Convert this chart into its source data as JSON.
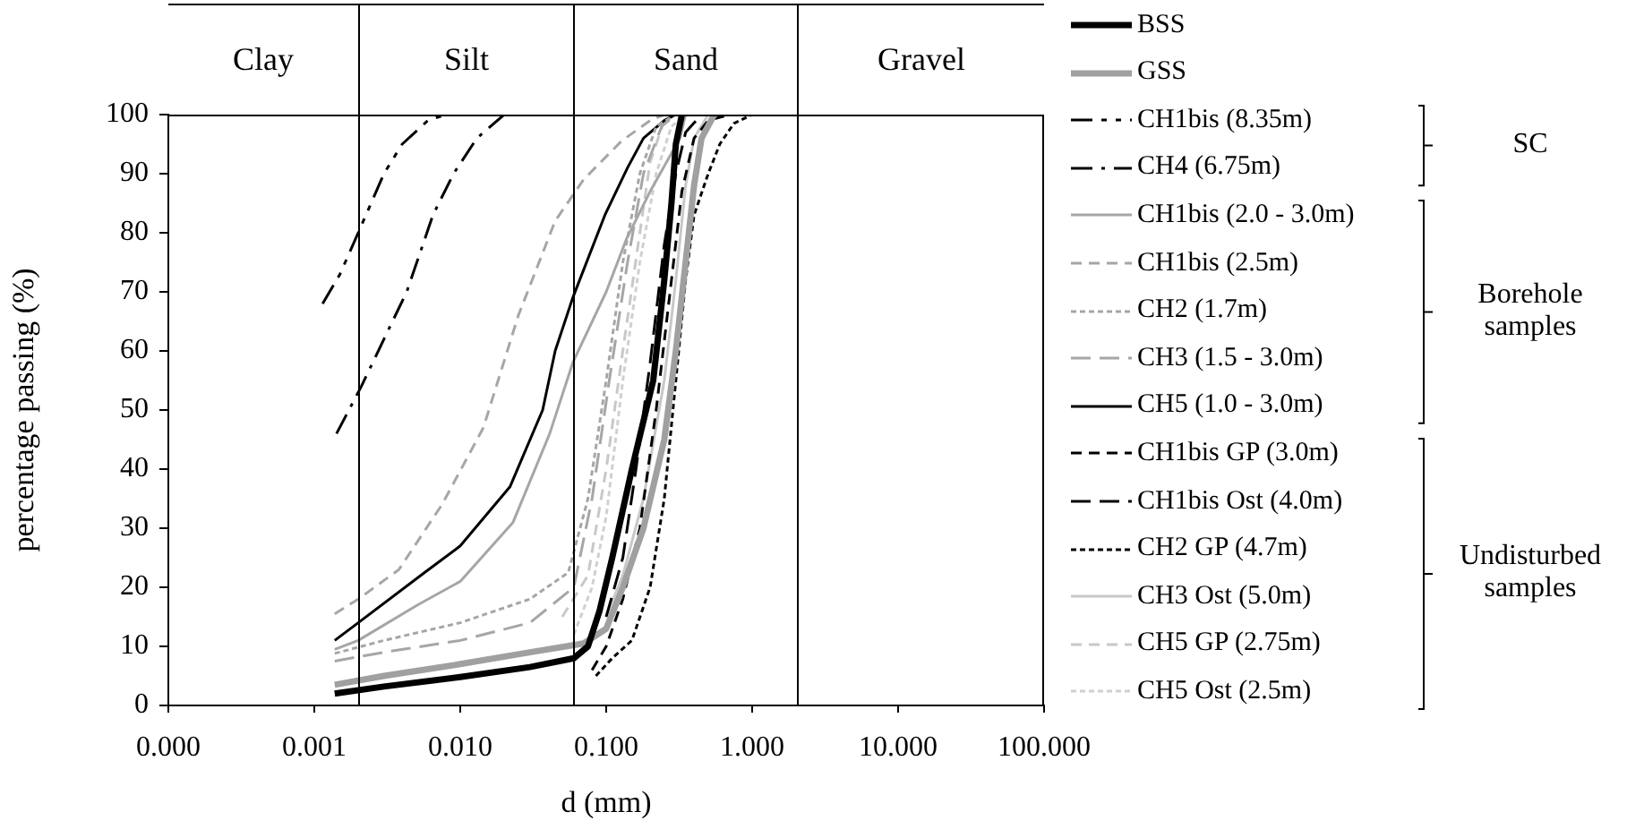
{
  "chart_data": {
    "type": "line",
    "xlabel": "d (mm)",
    "ylabel": "percentage passing (%)",
    "log": "x",
    "legend": "right",
    "xlim": [
      0.0001,
      100
    ],
    "xticks": [
      {
        "value": 0.0001,
        "label": "0.000"
      },
      0.001,
      {
        "value": 0.01,
        "label": "0.010"
      },
      {
        "value": 0.1,
        "label": "0.100"
      },
      {
        "value": 1,
        "label": "1.000"
      },
      {
        "value": 10,
        "label": "10.000"
      },
      {
        "value": 100,
        "label": "100.000"
      }
    ],
    "ylim": [
      0,
      100
    ],
    "yticks": [
      0,
      10,
      20,
      30,
      40,
      50,
      60,
      70,
      80,
      90,
      100
    ],
    "ref_lines": [
      {
        "axis": "x",
        "value": 0.002
      },
      {
        "axis": "x",
        "value": 0.06
      },
      {
        "axis": "x",
        "value": 2
      }
    ],
    "annotations": [
      "Clay",
      "Silt",
      "Sand",
      "Gravel",
      "SC",
      "Borehole samples",
      "Undisturbed samples"
    ],
    "series": [
      {
        "name": "BSS",
        "color": "#000000",
        "line_style": "solid",
        "x": [
          0.00138,
          0.003,
          0.01,
          0.03,
          0.06,
          0.075,
          0.09,
          0.11,
          0.15,
          0.21,
          0.25,
          0.28,
          0.3,
          0.33
        ],
        "values": [
          2,
          3.2,
          4.8,
          6.5,
          8,
          10,
          16,
          25,
          40,
          55,
          72,
          85,
          95,
          100
        ]
      },
      {
        "name": "GSS",
        "color": "#a0a0a0",
        "line_style": "solid",
        "x": [
          0.00138,
          0.003,
          0.01,
          0.03,
          0.07,
          0.1,
          0.13,
          0.18,
          0.25,
          0.3,
          0.35,
          0.4,
          0.45,
          0.55
        ],
        "values": [
          3.5,
          5,
          7,
          9,
          10.5,
          13,
          20,
          30,
          45,
          60,
          75,
          88,
          96,
          100
        ]
      },
      {
        "name": "CH1bis (8.35m)",
        "color": "#000000",
        "line_style": "dashdotdot",
        "x": [
          0.00114,
          0.0015,
          0.002,
          0.003,
          0.004,
          0.006,
          0.008
        ],
        "values": [
          68,
          73,
          80,
          90,
          95,
          99,
          100
        ]
      },
      {
        "name": "CH4 (6.75m)",
        "color": "#000000",
        "line_style": "dashdot",
        "x": [
          0.00142,
          0.0021,
          0.003,
          0.0043,
          0.0065,
          0.009,
          0.013,
          0.02
        ],
        "values": [
          46,
          54,
          62,
          70,
          83,
          90,
          96,
          100
        ]
      },
      {
        "name": "CH1bis (2.0 - 3.0m)",
        "color": "#a6a6a6",
        "line_style": "solid",
        "x": [
          0.00138,
          0.002,
          0.0051,
          0.01,
          0.023,
          0.041,
          0.059,
          0.1,
          0.138,
          0.2,
          0.32,
          0.35
        ],
        "values": [
          9.5,
          11,
          17,
          21,
          31,
          46,
          58,
          70,
          79,
          87,
          96,
          100
        ]
      },
      {
        "name": "CH1bis (2.5m)",
        "color": "#a6a6a6",
        "line_style": "dashed",
        "x": [
          0.00138,
          0.002,
          0.0038,
          0.0075,
          0.0144,
          0.025,
          0.0447,
          0.07,
          0.127,
          0.2,
          0.25
        ],
        "values": [
          15.5,
          18,
          23,
          34,
          47,
          66,
          82,
          89,
          95.5,
          99,
          100
        ]
      },
      {
        "name": "CH2 (1.7m)",
        "color": "#a6a6a6",
        "line_style": "dotted",
        "x": [
          0.00138,
          0.003,
          0.01,
          0.03,
          0.055,
          0.075,
          0.1,
          0.13,
          0.17,
          0.22,
          0.3
        ],
        "values": [
          8.8,
          11,
          14,
          18,
          22.5,
          35,
          55,
          75,
          90,
          98,
          100
        ]
      },
      {
        "name": "CH3 (1.5 - 3.0m)",
        "color": "#a6a6a6",
        "line_style": "longdash",
        "x": [
          0.00138,
          0.003,
          0.01,
          0.03,
          0.06,
          0.08,
          0.105,
          0.14,
          0.18,
          0.24,
          0.3
        ],
        "values": [
          7.5,
          9,
          11,
          14,
          20,
          35,
          55,
          75,
          90,
          98,
          100
        ]
      },
      {
        "name": "CH5 (1.0 - 3.0m)",
        "color": "#000000",
        "line_style": "solid",
        "x": [
          0.00138,
          0.002,
          0.0057,
          0.01,
          0.0219,
          0.0367,
          0.0447,
          0.059,
          0.098,
          0.14,
          0.18,
          0.25,
          0.3
        ],
        "values": [
          11,
          14,
          22.5,
          27,
          37,
          50,
          60,
          69,
          83,
          91,
          96,
          99,
          100
        ]
      },
      {
        "name": "CH1bis GP (3.0m)",
        "color": "#000000",
        "line_style": "dashed",
        "x": [
          0.08,
          0.1,
          0.13,
          0.17,
          0.22,
          0.28,
          0.33,
          0.4,
          0.5,
          0.7
        ],
        "values": [
          6,
          10,
          18,
          30,
          50,
          72,
          87,
          96,
          99,
          100
        ]
      },
      {
        "name": "CH1bis Ost (4.0m)",
        "color": "#000000",
        "line_style": "longdash",
        "x": [
          0.1,
          0.13,
          0.16,
          0.2,
          0.25,
          0.3,
          0.35,
          0.45
        ],
        "values": [
          15,
          25,
          40,
          58,
          78,
          90,
          97,
          100
        ]
      },
      {
        "name": "CH2 GP (4.7m)",
        "color": "#000000",
        "line_style": "dotted",
        "x": [
          0.085,
          0.11,
          0.15,
          0.2,
          0.25,
          0.3,
          0.35,
          0.4,
          0.5,
          0.6,
          0.75,
          1
        ],
        "values": [
          5,
          8,
          11,
          20,
          35,
          55,
          72,
          83,
          90,
          95,
          98.5,
          100
        ]
      },
      {
        "name": "CH3 Ost (5.0m)",
        "color": "#c8c8c8",
        "line_style": "solid",
        "x": [
          0.1,
          0.13,
          0.18,
          0.25,
          0.3,
          0.35,
          0.4,
          0.5
        ],
        "values": [
          15,
          22,
          35,
          55,
          72,
          88,
          96,
          100
        ]
      },
      {
        "name": "CH5 GP (2.75m)",
        "color": "#c8c8c8",
        "line_style": "dashed",
        "x": [
          0.05,
          0.075,
          0.1,
          0.13,
          0.17,
          0.2,
          0.25,
          0.3
        ],
        "values": [
          15,
          22,
          40,
          60,
          80,
          92,
          99,
          100
        ]
      },
      {
        "name": "CH5 Ost (2.5m)",
        "color": "#d0d0d0",
        "line_style": "dotted",
        "x": [
          0.06,
          0.08,
          0.1,
          0.13,
          0.17,
          0.22,
          0.28,
          0.35
        ],
        "values": [
          12,
          20,
          32,
          55,
          75,
          90,
          98,
          100
        ]
      }
    ]
  }
}
